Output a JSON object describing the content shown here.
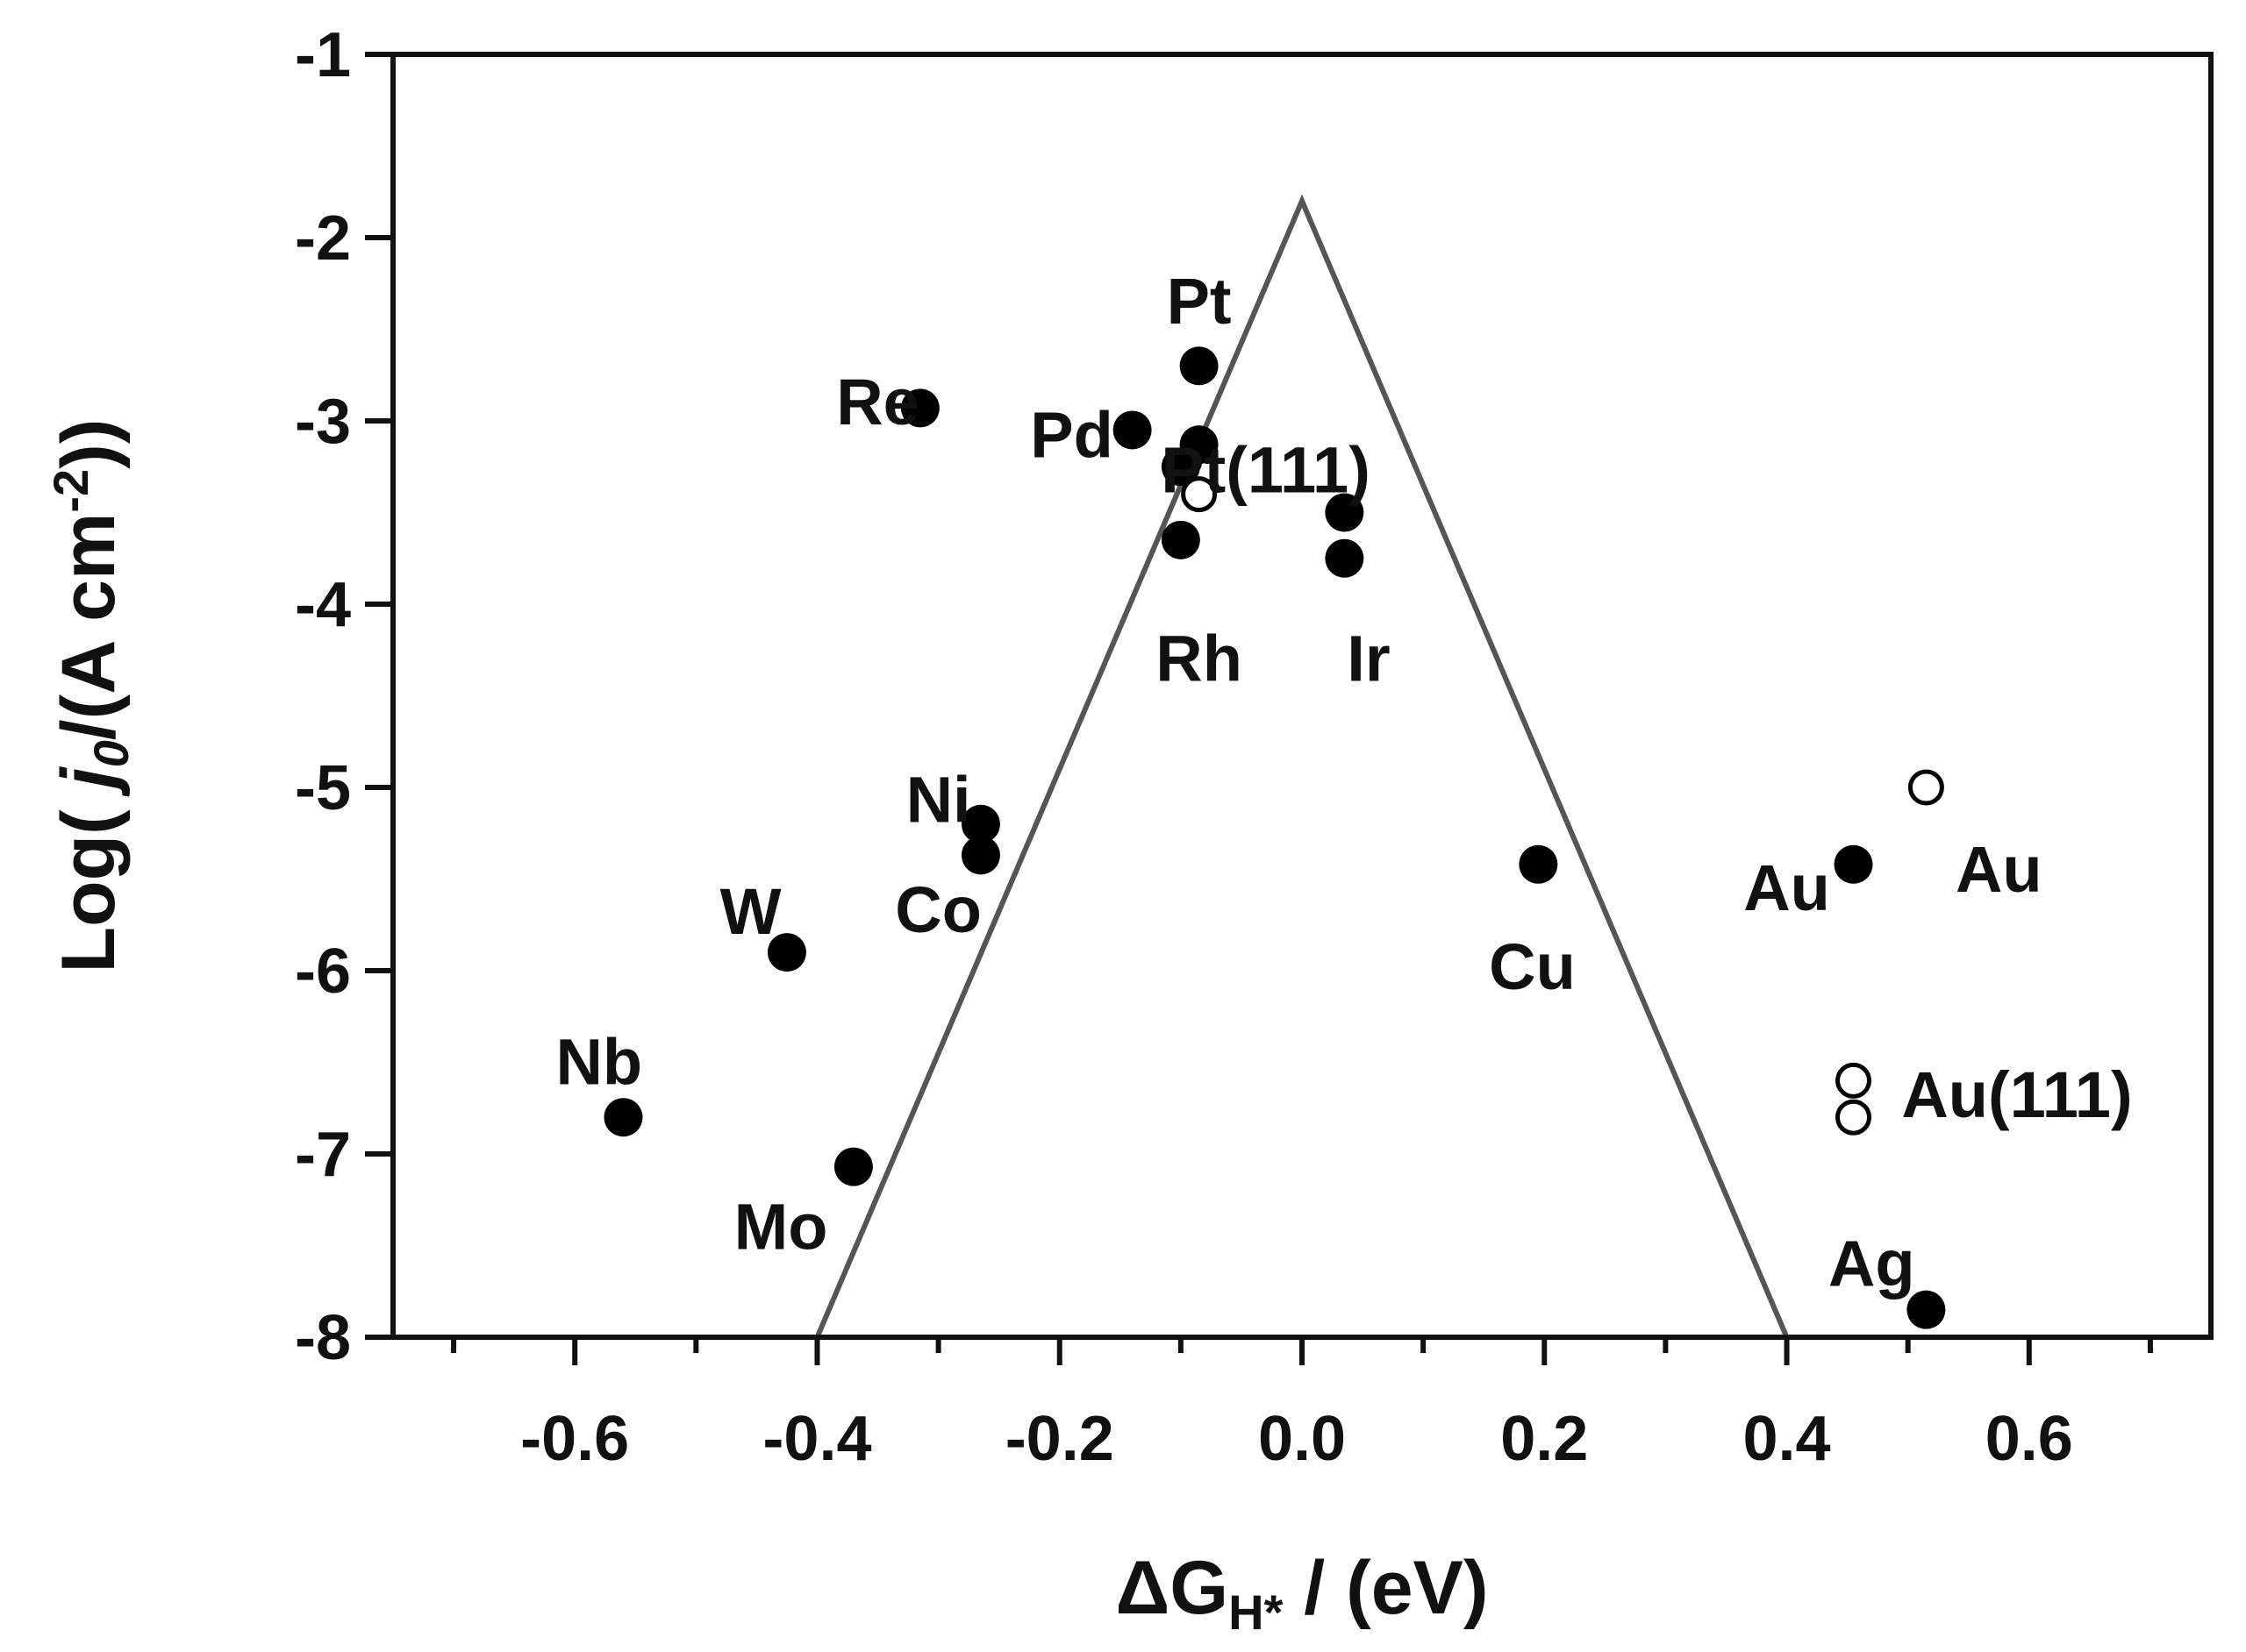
{
  "chart_data": {
    "type": "scatter",
    "title": "",
    "xlabel": "ΔG_H* / (eV)",
    "xlabel_parts": {
      "delta_g": "ΔG",
      "subscript": "H*",
      "unit": " / (eV)"
    },
    "ylabel": "Log( j0/(A cm^-2))",
    "ylabel_parts": {
      "prefix": "Log( ",
      "j": "j",
      "j_sub": "0",
      "middle": "/(A cm",
      "exp": "-2",
      "suffix": "))"
    },
    "xlim": [
      -0.75,
      0.75
    ],
    "ylim": [
      -8,
      -1
    ],
    "grid": false,
    "x_ticks": [
      -0.6,
      -0.4,
      -0.2,
      0.0,
      0.2,
      0.4,
      0.6
    ],
    "x_tick_labels": [
      "-0.6",
      "-0.4",
      "-0.2",
      "0.0",
      "0.2",
      "0.4",
      "0.6"
    ],
    "x_minor_ticks": [
      -0.7,
      -0.5,
      -0.3,
      -0.1,
      0.1,
      0.3,
      0.5,
      0.7
    ],
    "y_ticks": [
      -1,
      -2,
      -3,
      -4,
      -5,
      -6,
      -7,
      -8
    ],
    "y_tick_labels": [
      "-1",
      "-2",
      "-3",
      "-4",
      "-5",
      "-6",
      "-7",
      "-8"
    ],
    "volcano": {
      "x": [
        -0.4,
        0.0,
        0.4
      ],
      "y": [
        -8.0,
        -1.8,
        -8.0
      ]
    },
    "series": [
      {
        "marker": "filled",
        "points": [
          {
            "x": -0.085,
            "y": -2.7
          },
          {
            "x": -0.315,
            "y": -2.93
          },
          {
            "x": -0.14,
            "y": -3.05
          },
          {
            "x": -0.085,
            "y": -3.13
          },
          {
            "x": -0.1,
            "y": -3.25
          },
          {
            "x": -0.1,
            "y": -3.65
          },
          {
            "x": 0.035,
            "y": -3.5
          },
          {
            "x": 0.035,
            "y": -3.75
          },
          {
            "x": -0.265,
            "y": -5.2
          },
          {
            "x": -0.265,
            "y": -5.37
          },
          {
            "x": -0.425,
            "y": -5.9
          },
          {
            "x": -0.56,
            "y": -6.8
          },
          {
            "x": -0.37,
            "y": -7.07
          },
          {
            "x": 0.195,
            "y": -5.42
          },
          {
            "x": 0.455,
            "y": -5.42
          },
          {
            "x": 0.515,
            "y": -7.85
          }
        ]
      },
      {
        "marker": "open",
        "points": [
          {
            "x": -0.085,
            "y": -3.4
          },
          {
            "x": 0.515,
            "y": -5.0
          },
          {
            "x": 0.455,
            "y": -6.6
          },
          {
            "x": 0.455,
            "y": -6.8
          }
        ]
      }
    ],
    "annotations": [
      {
        "text": "Pt",
        "x": -0.085,
        "y": -2.35
      },
      {
        "text": "Re",
        "x": -0.35,
        "y": -2.9
      },
      {
        "text": "Pd",
        "x": -0.19,
        "y": -3.08
      },
      {
        "text": "Pt(111)",
        "x": -0.03,
        "y": -3.27
      },
      {
        "text": "Rh",
        "x": -0.085,
        "y": -4.3
      },
      {
        "text": "Ir",
        "x": 0.055,
        "y": -4.3
      },
      {
        "text": "Ni",
        "x": -0.3,
        "y": -5.07
      },
      {
        "text": "Co",
        "x": -0.3,
        "y": -5.67
      },
      {
        "text": "W",
        "x": -0.455,
        "y": -5.68
      },
      {
        "text": "Nb",
        "x": -0.58,
        "y": -6.5
      },
      {
        "text": "Mo",
        "x": -0.43,
        "y": -7.4
      },
      {
        "text": "Cu",
        "x": 0.19,
        "y": -5.98
      },
      {
        "text": "Au",
        "x": 0.4,
        "y": -5.55
      },
      {
        "text": "Au",
        "x": 0.575,
        "y": -5.45
      },
      {
        "text": "Au(111)",
        "x": 0.59,
        "y": -6.68
      },
      {
        "text": "Ag",
        "x": 0.47,
        "y": -7.6
      }
    ]
  }
}
